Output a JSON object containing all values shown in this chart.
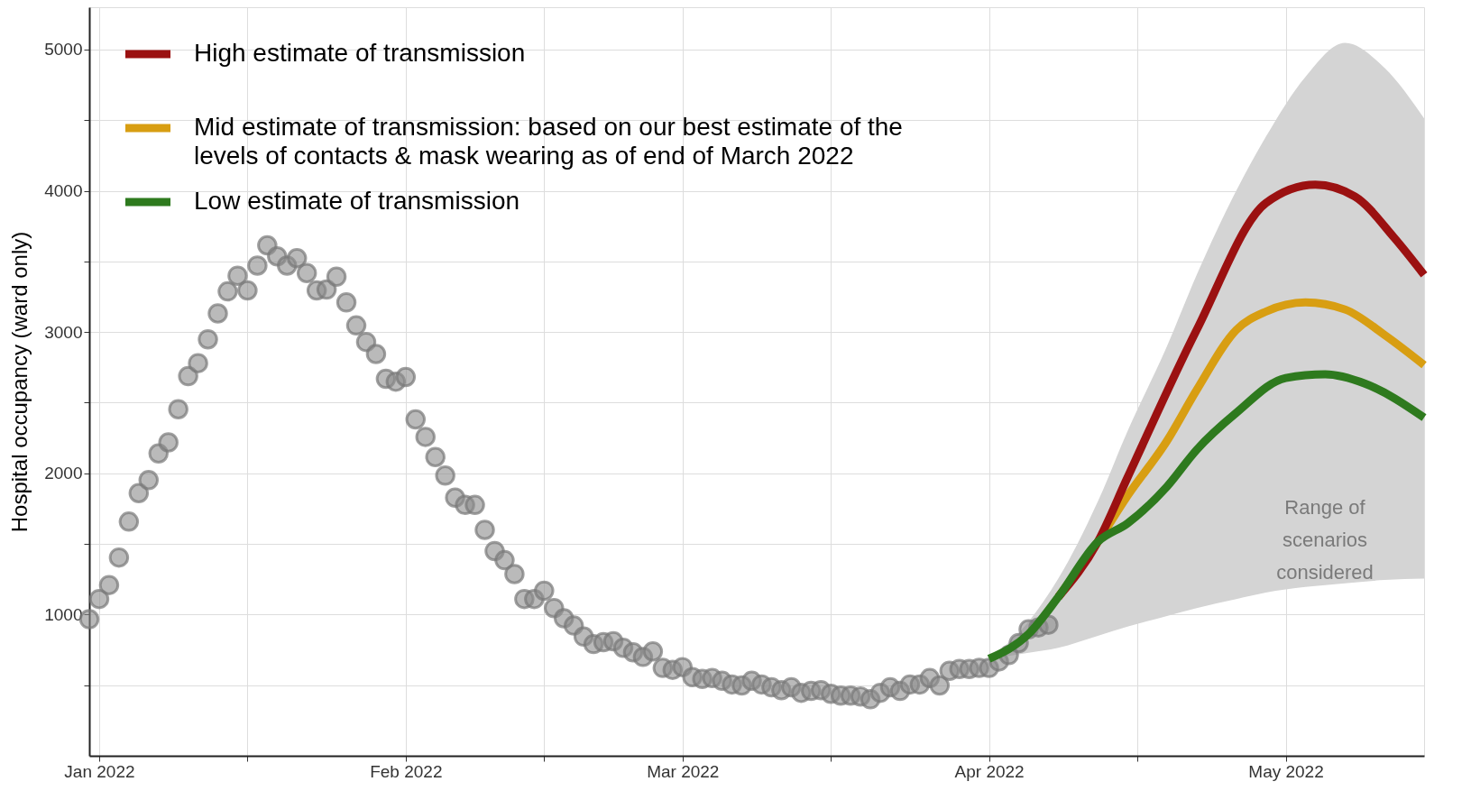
{
  "chart_data": {
    "type": "scatter",
    "ylabel": "Hospital occupancy (ward only)",
    "xlim": [
      "2021-12-31",
      "2022-05-15"
    ],
    "xticks": [
      {
        "value": "2022-01-01",
        "label": "Jan 2022"
      },
      {
        "value": "2022-01-16",
        "label": null
      },
      {
        "value": "2022-02-01",
        "label": "Feb 2022"
      },
      {
        "value": "2022-02-15",
        "label": null
      },
      {
        "value": "2022-03-01",
        "label": "Mar 2022"
      },
      {
        "value": "2022-03-16",
        "label": null
      },
      {
        "value": "2022-04-01",
        "label": "Apr 2022"
      },
      {
        "value": "2022-04-16",
        "label": null
      },
      {
        "value": "2022-05-01",
        "label": "May 2022"
      }
    ],
    "ylim": [
      0,
      5300
    ],
    "yticks": [
      {
        "value": 500,
        "label": null
      },
      1000,
      {
        "value": 1500,
        "label": null
      },
      2000,
      {
        "value": 2500,
        "label": null
      },
      3000,
      {
        "value": 3500,
        "label": null
      },
      4000,
      {
        "value": 4500,
        "label": null
      },
      5000
    ],
    "grid": true,
    "legend": "top left",
    "series": [
      {
        "color": "#8c8c8c",
        "marker": "circle",
        "x": [
          "2021-12-31",
          "2022-01-01",
          "2022-01-02",
          "2022-01-03",
          "2022-01-04",
          "2022-01-05",
          "2022-01-06",
          "2022-01-07",
          "2022-01-08",
          "2022-01-09",
          "2022-01-10",
          "2022-01-11",
          "2022-01-12",
          "2022-01-13",
          "2022-01-14",
          "2022-01-15",
          "2022-01-16",
          "2022-01-17",
          "2022-01-18",
          "2022-01-19",
          "2022-01-20",
          "2022-01-21",
          "2022-01-22",
          "2022-01-23",
          "2022-01-24",
          "2022-01-25",
          "2022-01-26",
          "2022-01-27",
          "2022-01-28",
          "2022-01-29",
          "2022-01-30",
          "2022-01-31",
          "2022-02-01",
          "2022-02-02",
          "2022-02-03",
          "2022-02-04",
          "2022-02-05",
          "2022-02-06",
          "2022-02-07",
          "2022-02-08",
          "2022-02-09",
          "2022-02-10",
          "2022-02-11",
          "2022-02-12",
          "2022-02-13",
          "2022-02-14",
          "2022-02-15",
          "2022-02-16",
          "2022-02-17",
          "2022-02-18",
          "2022-02-19",
          "2022-02-20",
          "2022-02-21",
          "2022-02-22",
          "2022-02-23",
          "2022-02-24",
          "2022-02-25",
          "2022-02-26",
          "2022-02-27",
          "2022-02-28",
          "2022-03-01",
          "2022-03-02",
          "2022-03-03",
          "2022-03-04",
          "2022-03-05",
          "2022-03-06",
          "2022-03-07",
          "2022-03-08",
          "2022-03-09",
          "2022-03-10",
          "2022-03-11",
          "2022-03-12",
          "2022-03-13",
          "2022-03-14",
          "2022-03-15",
          "2022-03-16",
          "2022-03-17",
          "2022-03-18",
          "2022-03-19",
          "2022-03-20",
          "2022-03-21",
          "2022-03-22",
          "2022-03-23",
          "2022-03-24",
          "2022-03-25",
          "2022-03-26",
          "2022-03-27",
          "2022-03-28",
          "2022-03-29",
          "2022-03-30",
          "2022-03-31",
          "2022-04-01",
          "2022-04-02",
          "2022-04-03",
          "2022-04-04",
          "2022-04-05",
          "2022-04-06",
          "2022-04-07"
        ],
        "values": [
          967,
          1110,
          1209,
          1404,
          1658,
          1860,
          1952,
          2141,
          2219,
          2454,
          2688,
          2780,
          2949,
          3132,
          3288,
          3399,
          3295,
          3471,
          3614,
          3536,
          3471,
          3523,
          3418,
          3295,
          3301,
          3392,
          3210,
          3047,
          2930,
          2845,
          2669,
          2649,
          2682,
          2382,
          2258,
          2115,
          1984,
          1828,
          1776,
          1776,
          1600,
          1450,
          1385,
          1287,
          1110,
          1110,
          1169,
          1046,
          974,
          922,
          844,
          791,
          804,
          811,
          765,
          733,
          700,
          739,
          622,
          609,
          628,
          557,
          544,
          550,
          531,
          505,
          498,
          531,
          505,
          485,
          465,
          485,
          446,
          459,
          465,
          439,
          426,
          426,
          420,
          400,
          446,
          485,
          459,
          505,
          505,
          550,
          498,
          602,
          615,
          615,
          622,
          622,
          668,
          713,
          798,
          896,
          909,
          928
        ]
      },
      {
        "type": "line",
        "name": "Mid estimate of transmission: based on our best estimate of the\nlevels of contacts & mask wearing as of end of March 2022",
        "color": "#d89e12",
        "x": [
          "2022-04-01",
          "2022-04-05",
          "2022-04-08",
          "2022-04-12",
          "2022-04-15",
          "2022-04-19",
          "2022-04-22",
          "2022-04-26",
          "2022-04-29",
          "2022-05-03",
          "2022-05-07",
          "2022-05-11",
          "2022-05-15"
        ],
        "values": [
          null,
          null,
          1124,
          1515,
          1840,
          2230,
          2590,
          3015,
          3145,
          3210,
          3160,
          2980,
          2767
        ],
        "lower": [
          687,
          730,
          765,
          850,
          915,
          990,
          1046,
          1110,
          1156,
          1195,
          1222,
          1245,
          1254
        ],
        "upper": [
          687,
          950,
          1254,
          1800,
          2297,
          2900,
          3405,
          4000,
          4383,
          4807,
          5048,
          4870,
          4513
        ]
      },
      {
        "type": "line",
        "name": "High estimate of transmission",
        "color": "#9b1111",
        "x": [
          "2022-04-08",
          "2022-04-12",
          "2022-04-15",
          "2022-04-22",
          "2022-04-29",
          "2022-05-04",
          "2022-05-08",
          "2022-05-12",
          "2022-05-15"
        ],
        "values": [
          1124,
          1515,
          1970,
          3015,
          3914,
          4044,
          3960,
          3666,
          3405
        ]
      },
      {
        "type": "line",
        "name": "Low estimate of transmission",
        "color": "#2e7a1e",
        "x": [
          "2022-04-01",
          "2022-04-05",
          "2022-04-08",
          "2022-04-12",
          "2022-04-15",
          "2022-04-19",
          "2022-04-22",
          "2022-04-26",
          "2022-05-01",
          "2022-05-05",
          "2022-05-09",
          "2022-05-15"
        ],
        "values": [
          687,
          863,
          1124,
          1515,
          1645,
          1906,
          2167,
          2428,
          2675,
          2701,
          2636,
          2395
        ]
      }
    ],
    "annotations": [
      "Range of\nscenarios\nconsidered"
    ]
  }
}
